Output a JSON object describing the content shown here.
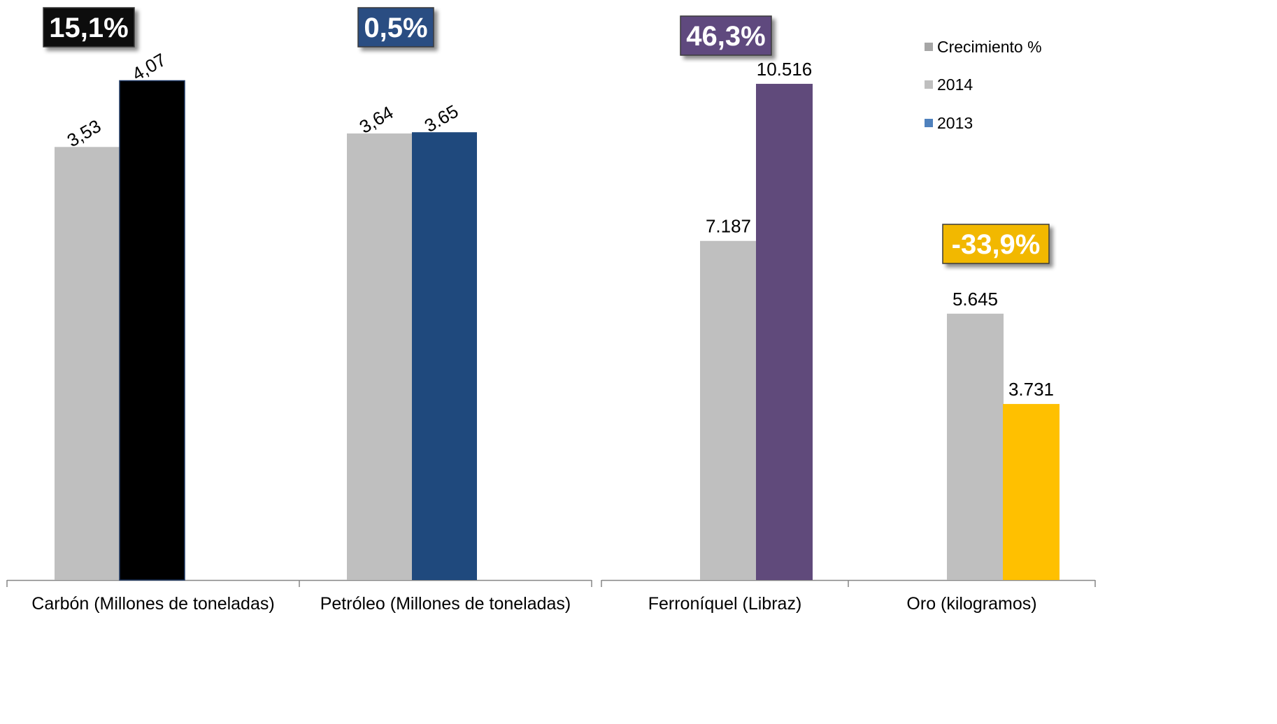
{
  "chart_data": [
    {
      "type": "bar",
      "categories": [
        "Carbón (Millones de toneladas)",
        "Petróleo (Millones de toneladas)"
      ],
      "series": [
        {
          "name": "2014",
          "values": [
            3.53,
            3.64
          ],
          "labels": [
            "3,53",
            "3,64"
          ],
          "color": "#bfbfbf"
        },
        {
          "name": "2013",
          "values": [
            4.07,
            3.65
          ],
          "labels": [
            "4,07",
            "3.65"
          ],
          "colors": [
            "#000000",
            "#1f497d"
          ]
        }
      ],
      "growth_badges": [
        {
          "text": "15,1%",
          "color": "#0d0d0d"
        },
        {
          "text": "0,5%",
          "color": "#2c4d82"
        }
      ],
      "ylim": [
        0,
        4.5
      ]
    },
    {
      "type": "bar",
      "categories": [
        "Ferroníquel (Libraz)",
        "Oro  (kilogramos)"
      ],
      "series": [
        {
          "name": "2014",
          "values": [
            7187,
            5645
          ],
          "labels": [
            "7.187",
            "5.645"
          ],
          "color": "#bfbfbf"
        },
        {
          "name": "2013",
          "values": [
            10516,
            3731
          ],
          "labels": [
            "10.516",
            "3.731"
          ],
          "colors": [
            "#604a7b",
            "#ffc000"
          ]
        }
      ],
      "growth_badges": [
        {
          "text": "46,3%",
          "color": "#5f4a7e"
        },
        {
          "text": "-33,9%",
          "color": "#f2b800"
        }
      ],
      "ylim": [
        0,
        11700
      ]
    }
  ],
  "legend": {
    "placement": "top-right",
    "items": [
      {
        "label": "Crecimiento %",
        "color": "#a6a6a6"
      },
      {
        "label": "2014",
        "color": "#bfbfbf"
      },
      {
        "label": "2013",
        "color": "#4f81bd"
      }
    ]
  }
}
